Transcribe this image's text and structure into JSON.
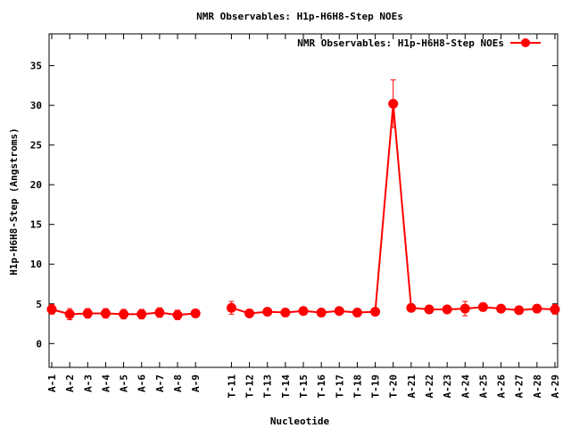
{
  "chart_data": {
    "type": "line",
    "title": "NMR Observables: H1p-H6H8-Step NOEs",
    "xlabel": "Nucleotide",
    "ylabel": "H1p-H6H8-Step (Angstroms)",
    "ylim": [
      -3,
      39
    ],
    "yticks": [
      0,
      5,
      10,
      15,
      20,
      25,
      30,
      35
    ],
    "grid": false,
    "legend_position": "top-right",
    "series_color": "#ff0000",
    "categories": [
      "A-1",
      "A-2",
      "A-3",
      "A-4",
      "A-5",
      "A-6",
      "A-7",
      "A-8",
      "A-9",
      "",
      "T-11",
      "T-12",
      "T-13",
      "T-14",
      "T-15",
      "T-16",
      "T-17",
      "T-18",
      "T-19",
      "T-20",
      "A-21",
      "A-22",
      "A-23",
      "A-24",
      "A-25",
      "A-26",
      "A-27",
      "A-28",
      "A-29"
    ],
    "series": [
      {
        "name": "NMR Observables: H1p-H6H8-Step NOEs",
        "segments": [
          {
            "x": [
              "A-1",
              "A-2",
              "A-3",
              "A-4",
              "A-5",
              "A-6",
              "A-7",
              "A-8",
              "A-9"
            ],
            "y": [
              4.3,
              3.7,
              3.8,
              3.8,
              3.7,
              3.7,
              3.9,
              3.6,
              3.8
            ],
            "err": [
              0.6,
              0.7,
              0.6,
              0.6,
              0.6,
              0.6,
              0.6,
              0.6,
              0.5
            ]
          },
          {
            "x": [
              "T-11",
              "T-12",
              "T-13",
              "T-14",
              "T-15",
              "T-16",
              "T-17",
              "T-18",
              "T-19",
              "T-20",
              "A-21",
              "A-22",
              "A-23",
              "A-24",
              "A-25",
              "A-26",
              "A-27",
              "A-28",
              "A-29"
            ],
            "y": [
              4.5,
              3.8,
              4.0,
              3.9,
              4.1,
              3.9,
              4.1,
              3.9,
              4.0,
              30.2,
              4.5,
              4.3,
              4.3,
              4.4,
              4.6,
              4.4,
              4.2,
              4.4,
              4.3
            ],
            "err": [
              0.8,
              0.4,
              0.4,
              0.4,
              0.4,
              0.4,
              0.4,
              0.4,
              0.4,
              3.0,
              0.4,
              0.5,
              0.5,
              0.9,
              0.5,
              0.4,
              0.4,
              0.5,
              0.6
            ]
          }
        ]
      }
    ]
  }
}
